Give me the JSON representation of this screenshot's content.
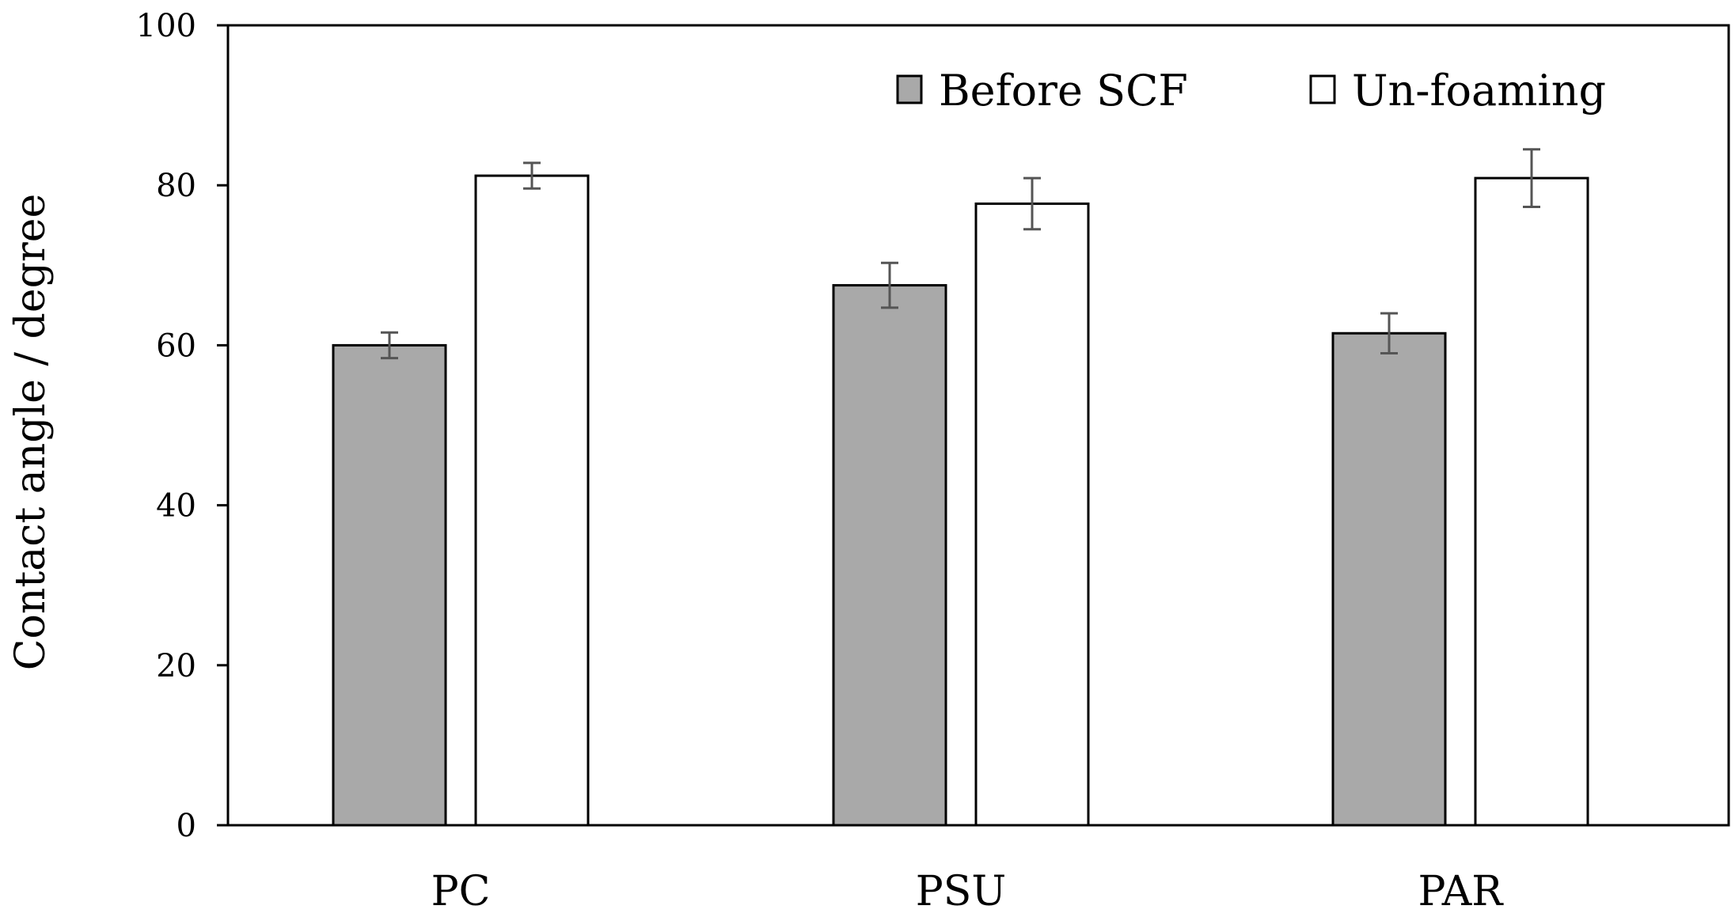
{
  "chart_data": {
    "type": "bar",
    "title": "",
    "xlabel": "",
    "ylabel": "Contact angle / degree",
    "ylim": [
      0,
      100
    ],
    "yticks": [
      0,
      20,
      40,
      60,
      80,
      100
    ],
    "grid": false,
    "legend_position": "top-right",
    "categories": [
      "PC",
      "PSU",
      "PAR"
    ],
    "series": [
      {
        "name": "Before SCF",
        "color": "#a9a9a9",
        "values": [
          60.0,
          67.5,
          61.5
        ],
        "errors": [
          1.6,
          2.8,
          2.5
        ]
      },
      {
        "name": "Un-foaming",
        "color": "#ffffff",
        "values": [
          81.2,
          77.7,
          80.9
        ],
        "errors": [
          1.6,
          3.2,
          3.6
        ]
      }
    ]
  }
}
